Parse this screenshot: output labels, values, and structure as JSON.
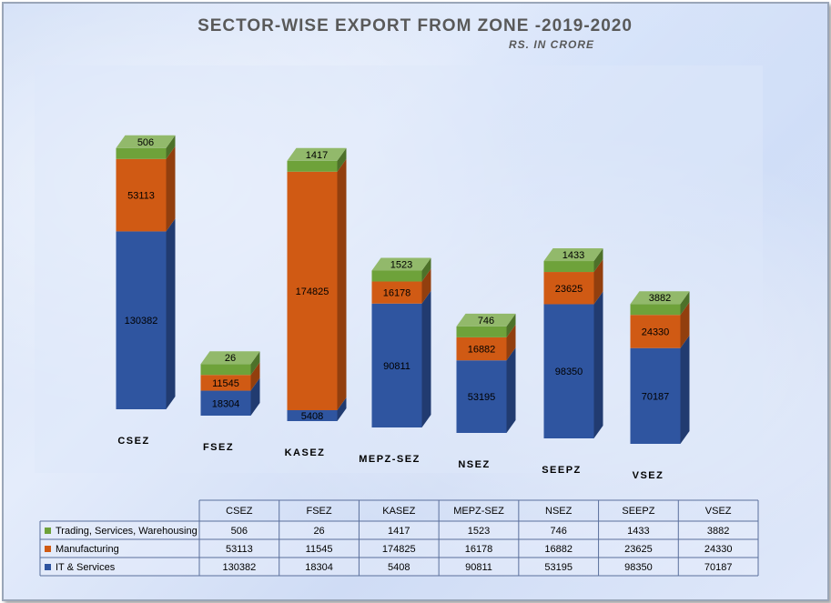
{
  "chart_data": {
    "type": "bar",
    "stacked": true,
    "title": "SECTOR-WISE EXPORT FROM ZONE -2019-2020",
    "subtitle": "RS. IN CRORE",
    "categories": [
      "CSEZ",
      "FSEZ",
      "KASEZ",
      "MEPZ-SEZ",
      "NSEZ",
      "SEEPZ",
      "VSEZ"
    ],
    "series": [
      {
        "name": "IT & Services",
        "color": "#2f55a0",
        "values": [
          130382,
          18304,
          5408,
          90811,
          53195,
          98350,
          70187
        ]
      },
      {
        "name": "Manufacturing",
        "color": "#d05a14",
        "values": [
          53113,
          11545,
          174825,
          16178,
          16882,
          23625,
          24330
        ]
      },
      {
        "name": "Trading, Services, Warehousing",
        "color": "#6ea23a",
        "values": [
          506,
          26,
          1417,
          1523,
          746,
          1433,
          3882
        ]
      }
    ],
    "legend_placement": "data-table",
    "grid": false
  }
}
